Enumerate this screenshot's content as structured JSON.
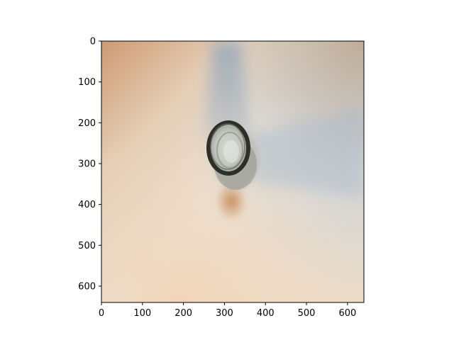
{
  "figure": {
    "type": "image-with-axes",
    "subject": "bottle-neck-top-view",
    "x_axis": {
      "range": [
        0,
        640
      ],
      "ticks": [
        {
          "value": 0,
          "label": "0"
        },
        {
          "value": 100,
          "label": "100"
        },
        {
          "value": 200,
          "label": "200"
        },
        {
          "value": 300,
          "label": "300"
        },
        {
          "value": 400,
          "label": "400"
        },
        {
          "value": 500,
          "label": "500"
        },
        {
          "value": 600,
          "label": "600"
        }
      ]
    },
    "y_axis": {
      "range": [
        0,
        640
      ],
      "inverted": true,
      "ticks": [
        {
          "value": 0,
          "label": "0"
        },
        {
          "value": 100,
          "label": "100"
        },
        {
          "value": 200,
          "label": "200"
        },
        {
          "value": 300,
          "label": "300"
        },
        {
          "value": 400,
          "label": "400"
        },
        {
          "value": 500,
          "label": "500"
        },
        {
          "value": 600,
          "label": "600"
        }
      ]
    },
    "colors": {
      "background_top_left": "#d4a27d",
      "background_center": "#ece6dc",
      "background_right": "#d9dde0",
      "background_bottom": "#efdcc4",
      "shadow_blue": "#8fa6bd",
      "shadow_orange": "#c98a55",
      "bottle_ring": "#2f2f2a"
    }
  }
}
